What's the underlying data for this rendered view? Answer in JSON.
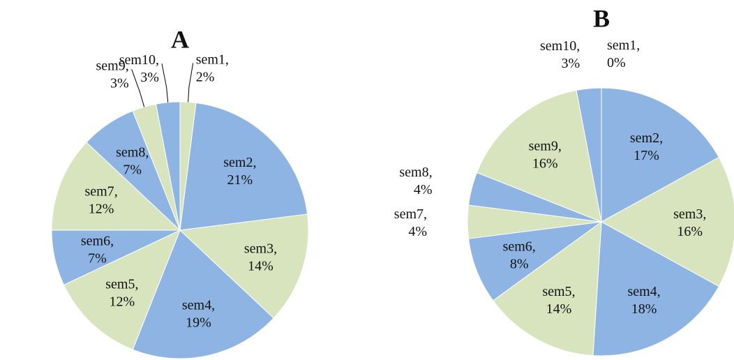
{
  "chart_data": [
    {
      "type": "pie",
      "title": "A",
      "categories": [
        "sem1",
        "sem2",
        "sem3",
        "sem4",
        "sem5",
        "sem6",
        "sem7",
        "sem8",
        "sem9",
        "sem10"
      ],
      "values": [
        2,
        21,
        14,
        19,
        12,
        7,
        12,
        7,
        3,
        3
      ],
      "value_labels": [
        "2%",
        "21%",
        "14%",
        "19%",
        "12%",
        "7%",
        "12%",
        "7%",
        "3%",
        "3%"
      ],
      "label_separator": ",",
      "colors": [
        "#d7e4bd",
        "#8eb4e3",
        "#d7e4bd",
        "#8eb4e3",
        "#d7e4bd",
        "#8eb4e3",
        "#d7e4bd",
        "#8eb4e3",
        "#d7e4bd",
        "#8eb4e3"
      ],
      "leader_lines": true
    },
    {
      "type": "pie",
      "title": "B",
      "categories": [
        "sem1",
        "sem2",
        "sem3",
        "sem4",
        "sem5",
        "sem6",
        "sem7",
        "sem8",
        "sem9",
        "sem10"
      ],
      "values": [
        0,
        17,
        16,
        18,
        14,
        8,
        4,
        4,
        16,
        3
      ],
      "value_labels": [
        "0%",
        "17%",
        "16%",
        "18%",
        "14%",
        "8%",
        "4%",
        "4%",
        "16%",
        "3%"
      ],
      "label_separator": ",",
      "colors": [
        "#d7e4bd",
        "#8eb4e3",
        "#d7e4bd",
        "#8eb4e3",
        "#d7e4bd",
        "#8eb4e3",
        "#d7e4bd",
        "#8eb4e3",
        "#d7e4bd",
        "#8eb4e3"
      ],
      "leader_lines": false
    }
  ]
}
